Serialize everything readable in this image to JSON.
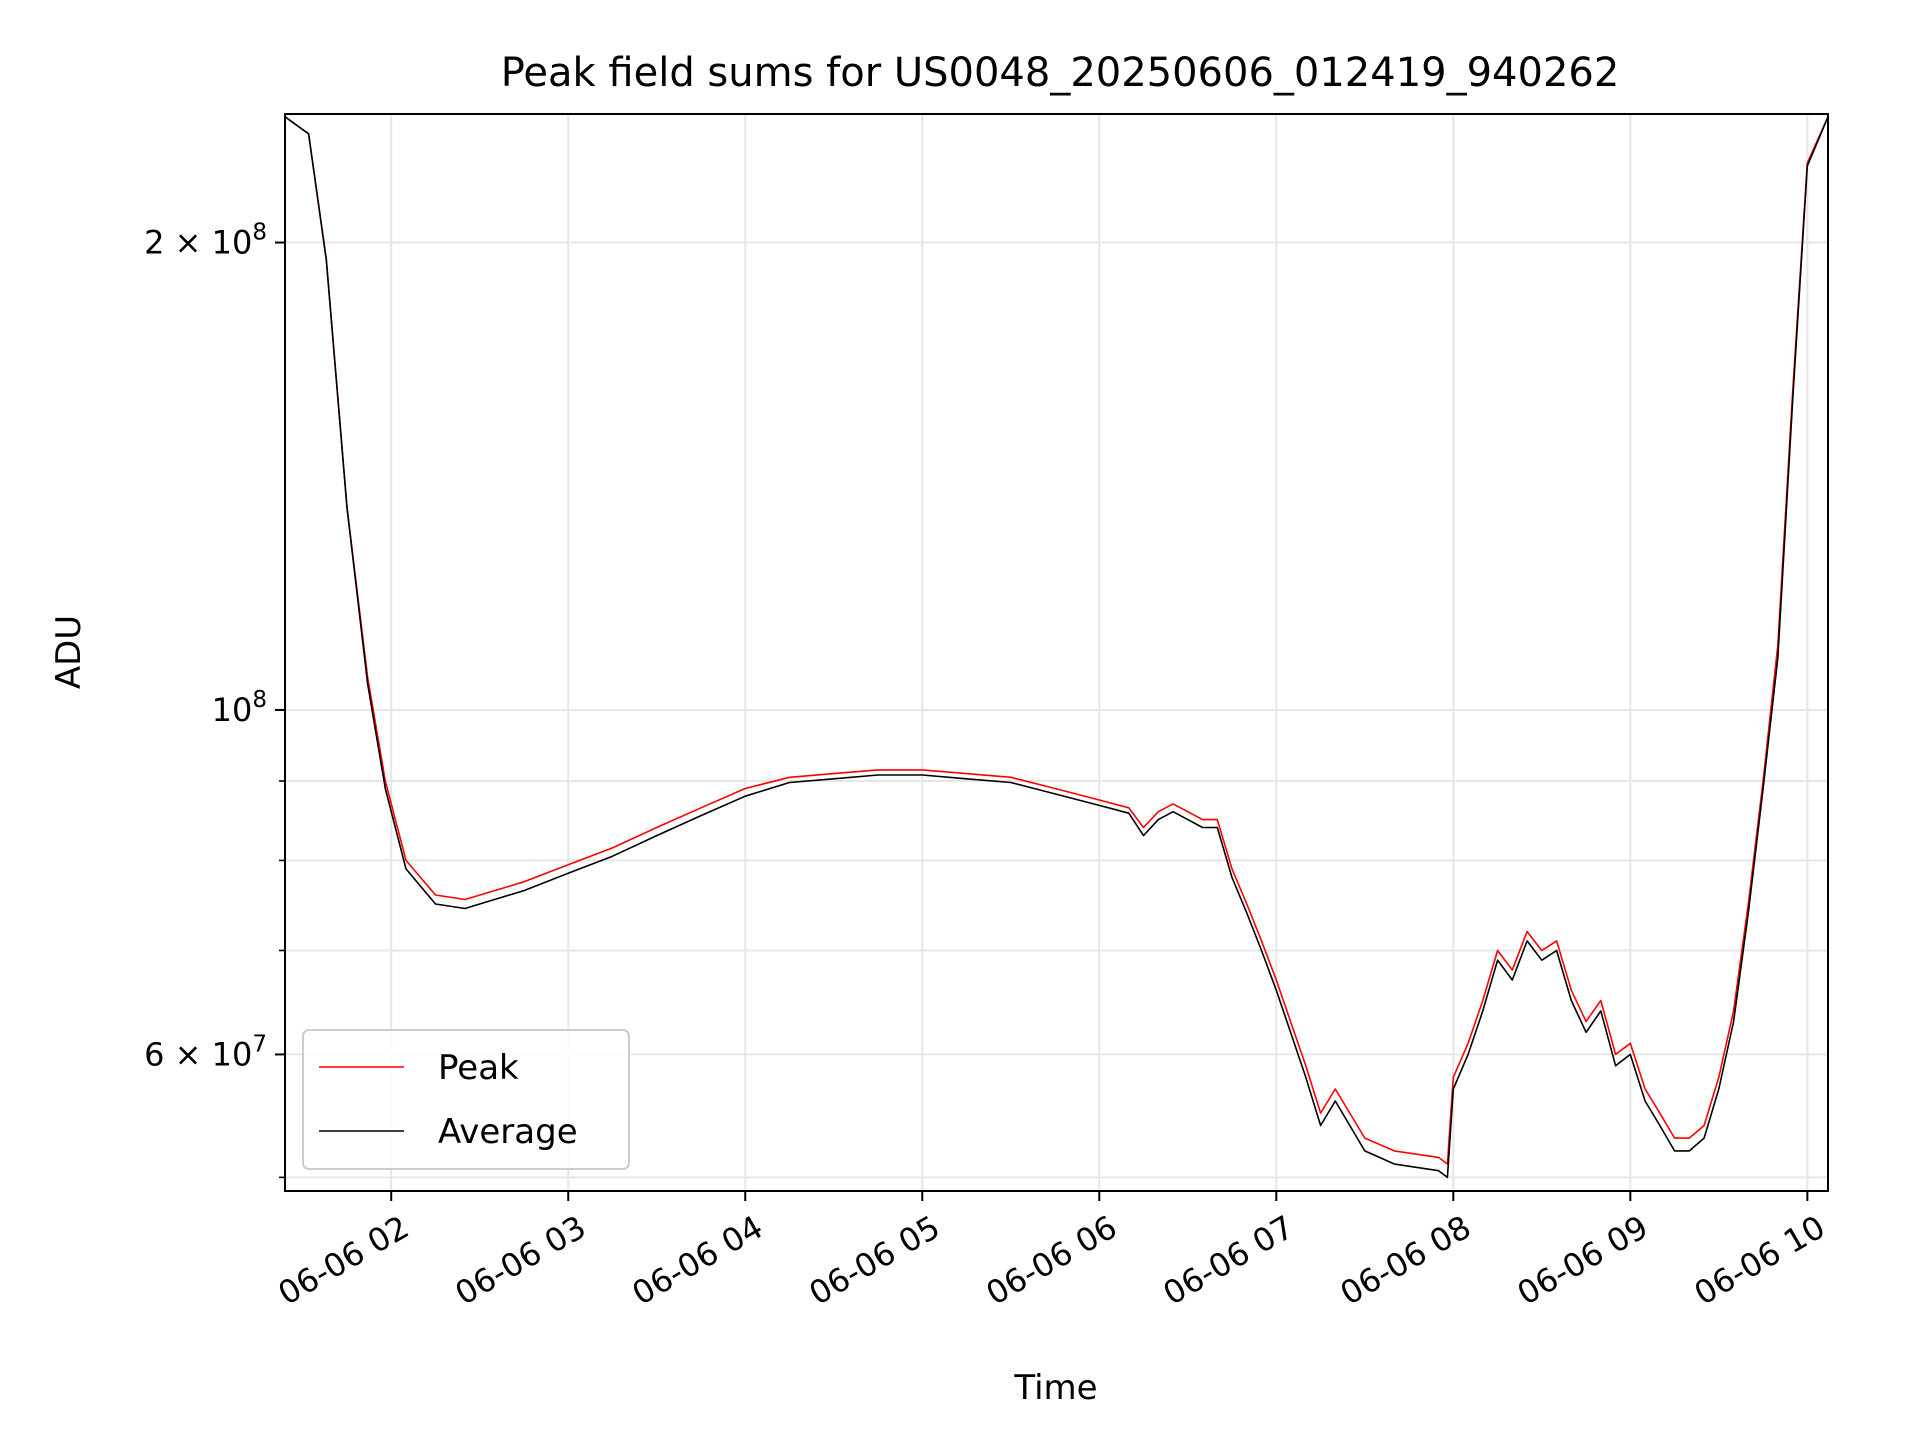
{
  "chart_data": {
    "type": "line",
    "title": "Peak field sums for US0048_20250606_012419_940262",
    "xlabel": "Time",
    "ylabel": "ADU",
    "yscale": "log",
    "ylim": [
      49000000,
      242000000
    ],
    "xlim": [
      "2025-06-06 01:24",
      "2025-06-06 10:07"
    ],
    "grid": true,
    "legend_position": "lower-left",
    "x_ticks": [
      "06-06 02",
      "06-06 03",
      "06-06 04",
      "06-06 05",
      "06-06 06",
      "06-06 07",
      "06-06 08",
      "06-06 09",
      "06-06 10"
    ],
    "x_tick_times": [
      "2025-06-06 02:00",
      "2025-06-06 03:00",
      "2025-06-06 04:00",
      "2025-06-06 05:00",
      "2025-06-06 06:00",
      "2025-06-06 07:00",
      "2025-06-06 08:00",
      "2025-06-06 09:00",
      "2025-06-06 10:00"
    ],
    "y_major_ticks": [
      {
        "value": 100000000,
        "label": "10",
        "exp": "8"
      },
      {
        "value": 60000000,
        "label": "6 × 10",
        "exp": "7"
      },
      {
        "value": 200000000,
        "label": "2 × 10",
        "exp": "8"
      }
    ],
    "y_minor_ticks": [
      50000000,
      70000000,
      80000000,
      90000000
    ],
    "x": [
      "2025-06-06 01:24",
      "2025-06-06 01:32",
      "2025-06-06 01:38",
      "2025-06-06 01:45",
      "2025-06-06 01:52",
      "2025-06-06 01:58",
      "2025-06-06 02:05",
      "2025-06-06 02:15",
      "2025-06-06 02:25",
      "2025-06-06 02:35",
      "2025-06-06 02:45",
      "2025-06-06 03:00",
      "2025-06-06 03:15",
      "2025-06-06 03:30",
      "2025-06-06 03:45",
      "2025-06-06 04:00",
      "2025-06-06 04:15",
      "2025-06-06 04:30",
      "2025-06-06 04:45",
      "2025-06-06 05:00",
      "2025-06-06 05:15",
      "2025-06-06 05:30",
      "2025-06-06 05:45",
      "2025-06-06 06:00",
      "2025-06-06 06:10",
      "2025-06-06 06:15",
      "2025-06-06 06:20",
      "2025-06-06 06:25",
      "2025-06-06 06:30",
      "2025-06-06 06:35",
      "2025-06-06 06:40",
      "2025-06-06 06:45",
      "2025-06-06 06:50",
      "2025-06-06 06:55",
      "2025-06-06 07:00",
      "2025-06-06 07:10",
      "2025-06-06 07:15",
      "2025-06-06 07:20",
      "2025-06-06 07:30",
      "2025-06-06 07:40",
      "2025-06-06 07:55",
      "2025-06-06 07:58",
      "2025-06-06 08:00",
      "2025-06-06 08:05",
      "2025-06-06 08:10",
      "2025-06-06 08:15",
      "2025-06-06 08:20",
      "2025-06-06 08:25",
      "2025-06-06 08:30",
      "2025-06-06 08:35",
      "2025-06-06 08:40",
      "2025-06-06 08:45",
      "2025-06-06 08:50",
      "2025-06-06 08:55",
      "2025-06-06 09:00",
      "2025-06-06 09:05",
      "2025-06-06 09:10",
      "2025-06-06 09:15",
      "2025-06-06 09:20",
      "2025-06-06 09:25",
      "2025-06-06 09:30",
      "2025-06-06 09:35",
      "2025-06-06 09:40",
      "2025-06-06 09:45",
      "2025-06-06 09:50",
      "2025-06-06 09:55",
      "2025-06-06 10:00",
      "2025-06-06 10:07"
    ],
    "series": [
      {
        "name": "Peak",
        "color": "#ff0000",
        "values": [
          241000000,
          235000000,
          195000000,
          135000000,
          105000000,
          90000000,
          80000000,
          76000000,
          75500000,
          76500000,
          77500000,
          79500000,
          81500000,
          84000000,
          86500000,
          89000000,
          90500000,
          91000000,
          91500000,
          91500000,
          91000000,
          90500000,
          89000000,
          87500000,
          86500000,
          84000000,
          86000000,
          87000000,
          86000000,
          85000000,
          85000000,
          79000000,
          75000000,
          71000000,
          67000000,
          59000000,
          55000000,
          57000000,
          53000000,
          52000000,
          51500000,
          51000000,
          58000000,
          61000000,
          65000000,
          70000000,
          68000000,
          72000000,
          70000000,
          71000000,
          66000000,
          63000000,
          65000000,
          60000000,
          61000000,
          57000000,
          55000000,
          53000000,
          53000000,
          54000000,
          58000000,
          64000000,
          75000000,
          90000000,
          110000000,
          160000000,
          225000000,
          241000000
        ]
      },
      {
        "name": "Average",
        "color": "#000000",
        "values": [
          241000000,
          235000000,
          195000000,
          135000000,
          104000000,
          89000000,
          79000000,
          75000000,
          74500000,
          75500000,
          76500000,
          78500000,
          80500000,
          83000000,
          85500000,
          88000000,
          89800000,
          90300000,
          90800000,
          90800000,
          90300000,
          89800000,
          88300000,
          86800000,
          85800000,
          83000000,
          85000000,
          86000000,
          85000000,
          84000000,
          84000000,
          78000000,
          74000000,
          70000000,
          66000000,
          58000000,
          54000000,
          56000000,
          52000000,
          51000000,
          50500000,
          50000000,
          57000000,
          60000000,
          64000000,
          69000000,
          67000000,
          71000000,
          69000000,
          70000000,
          65000000,
          62000000,
          64000000,
          59000000,
          60000000,
          56000000,
          54000000,
          52000000,
          52000000,
          53000000,
          57000000,
          63000000,
          74000000,
          89000000,
          108000000,
          158000000,
          224000000,
          241000000
        ]
      }
    ]
  }
}
